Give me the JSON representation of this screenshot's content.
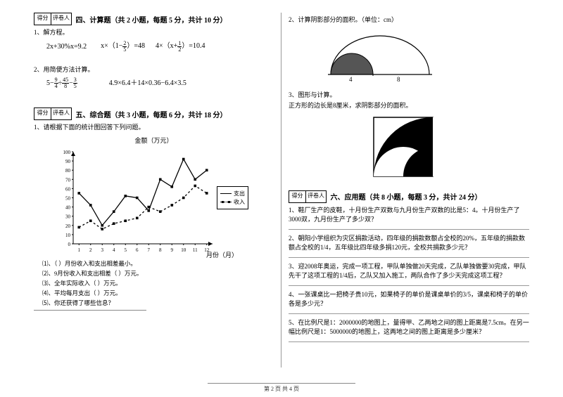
{
  "left": {
    "scoreLabels": {
      "a": "得分",
      "b": "评卷人"
    },
    "section4": "四、计算题（共 2 小题，每题 5 分，共计 10 分）",
    "q1": "1、解方程。",
    "eq1a": "2x+30%x=9.2",
    "eq1b_pre": "x×（1−",
    "eq1b_post": "）=48",
    "eq1c_pre": "4×（x+",
    "eq1c_post": "）=10.4",
    "q2": "2、用简便方法计算。",
    "eq2a_1": "5−",
    "eq2a_2": "÷",
    "eq2a_3": "−",
    "eq2b": "4.9×6.4＋14×0.36−6.4×3.5",
    "section5": "五、综合题（共 3 小题，每题 6 分，共计 18 分）",
    "q5_1": "1、请根据下面的统计图回答下列问题。",
    "chart": {
      "title": "金额（万元）",
      "xlabel": "月份（月）",
      "yticks": [
        0,
        10,
        20,
        30,
        40,
        50,
        60,
        70,
        80,
        90,
        100
      ],
      "xticks": [
        1,
        2,
        3,
        4,
        5,
        6,
        7,
        8,
        9,
        10,
        11,
        12
      ],
      "series": [
        {
          "name": "支出",
          "style": "solid",
          "points": [
            55,
            42,
            20,
            35,
            52,
            50,
            36,
            70,
            62,
            92,
            70,
            80
          ]
        },
        {
          "name": "收入",
          "style": "dash",
          "points": [
            18,
            25,
            16,
            22,
            25,
            28,
            40,
            35,
            42,
            50,
            63,
            55
          ]
        }
      ],
      "colors": {
        "axis": "#000",
        "grid": "#999",
        "solid": "#000",
        "dash": "#000",
        "bg": "#fff"
      },
      "ylim": [
        0,
        100
      ]
    },
    "legend": {
      "a": "支出",
      "b": "收入"
    },
    "sub": {
      "s1": "⑴、（   ）月份收入和支出相差最小。",
      "s2": "⑵、9月份收入和支出相差（   ）万元。",
      "s3": "⑶、全年实际收入（   ）万元。",
      "s4": "⑷、平均每月支出（   ）万元。",
      "s5": "⑸、你还获得了哪些信息？"
    }
  },
  "right": {
    "q2": "2、计算阴影部分的面积。（单位：cm）",
    "dome": {
      "r1": "4",
      "r2": "8"
    },
    "q3": "3、图形与计算。",
    "q3b": "    正方形的边长是8厘米，求阴影部分的面积。",
    "section6": "六、应用题（共 8 小题，每题 3 分，共计 24 分）",
    "a1": "1、鞋厂生产的皮鞋，十月份生产双数与九月份生产双数的比是5：4。十月份生产了3000双，九月份生产了多少双？",
    "a2": "2、朝阳小学组织为灾区捐款活动，四年级的捐款数额占全校的20%，五年级的捐款数额占全校的1/4，五年级比四年级多捐120元，全校共捐款多少元？",
    "a3": "3、迎2008年奥运，完成一项工程，甲队单独做20天完成，乙队单独做要30完成，甲队先干了这项工程的1/4后，乙队又加入施工，两队合作了多少天完成这项工程？",
    "a4": "4、一张课桌比一把椅子贵10元，如果椅子的单价是课桌单价的3/5，课桌和椅子的单价各是多少元？",
    "a5": "5、在比例尺是1：2000000的地图上，量得甲、乙两地之间的图上距离是7.5cm。在另一幅比例尺是1：5000000的地图上，这两地之间的图上距离是多少厘米？"
  },
  "footer": "第 2 页 共 4 页"
}
